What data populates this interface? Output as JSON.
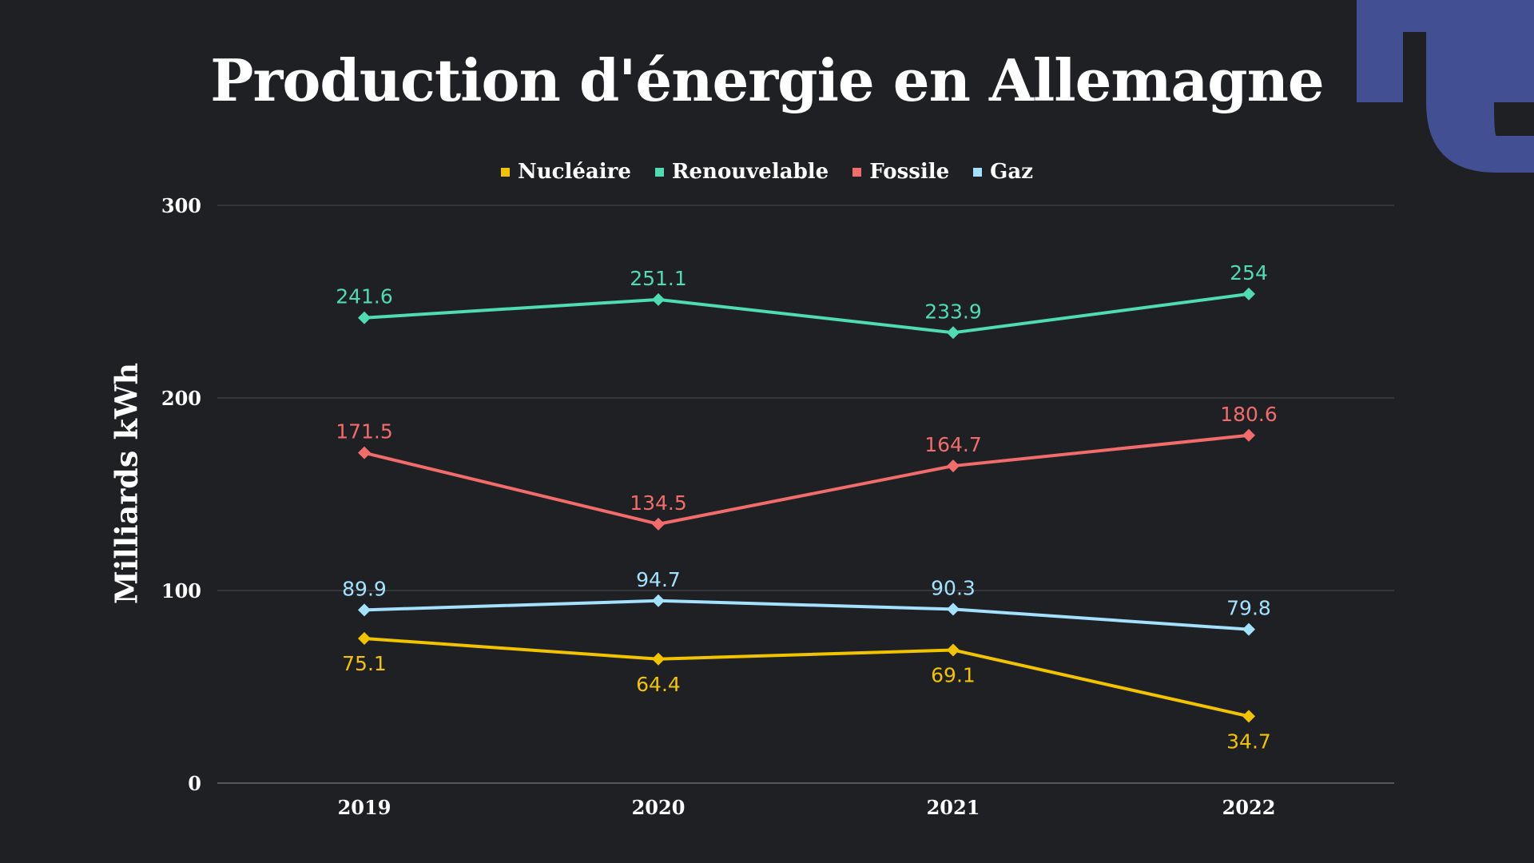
{
  "colors": {
    "background": "#1f2023",
    "text": "#ffffff",
    "grid": "#4a4b4f",
    "logo": "#434f93"
  },
  "logo": {
    "icon": "brand-logo-icon"
  },
  "chart_data": {
    "type": "line",
    "title": "Production d'énergie en Allemagne",
    "xlabel": "",
    "ylabel": "Milliards kWh",
    "x": [
      "2019",
      "2020",
      "2021",
      "2022"
    ],
    "ylim": [
      0,
      300
    ],
    "yticks": [
      0,
      100,
      200,
      300
    ],
    "grid": true,
    "legend_position": "top-center",
    "marker": "diamond",
    "series": [
      {
        "name": "Nucléaire",
        "color": "#f2c400",
        "values": [
          75.1,
          64.4,
          69.1,
          34.7
        ],
        "labels": [
          "75.1",
          "64.4",
          "69.1",
          "34.7"
        ],
        "label_position": "below"
      },
      {
        "name": "Renouvelable",
        "color": "#4fdbb3",
        "values": [
          241.6,
          251.1,
          233.9,
          254
        ],
        "labels": [
          "241.6",
          "251.1",
          "233.9",
          "254"
        ],
        "label_position": "above"
      },
      {
        "name": "Fossile",
        "color": "#f26c6c",
        "values": [
          171.5,
          134.5,
          164.7,
          180.6
        ],
        "labels": [
          "171.5",
          "134.5",
          "164.7",
          "180.6"
        ],
        "label_position": "above"
      },
      {
        "name": "Gaz",
        "color": "#a3e1ff",
        "values": [
          89.9,
          94.7,
          90.3,
          79.8
        ],
        "labels": [
          "89.9",
          "94.7",
          "90.3",
          "79.8"
        ],
        "label_position": "above"
      }
    ]
  }
}
